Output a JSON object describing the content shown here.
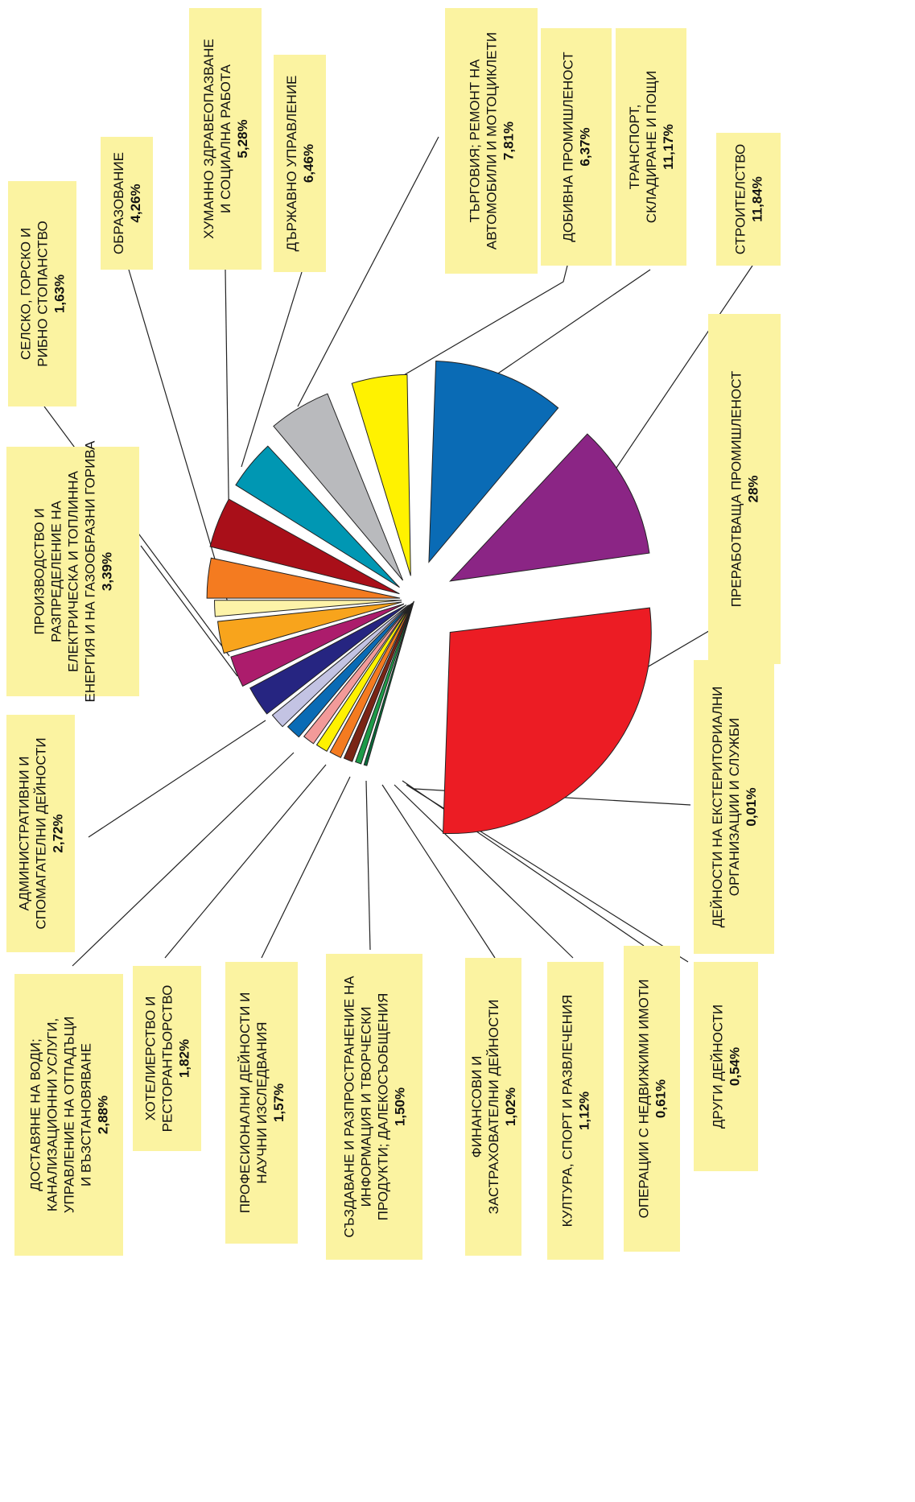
{
  "chart_data": {
    "type": "pie",
    "title": "",
    "slices": [
      {
        "label": "ПРЕРАБОТВАЩА ПРОМИШЛЕНОСТ",
        "value": 28,
        "value_text": "28%",
        "color": "#ec1c24"
      },
      {
        "label": "СТРОИТЕЛСТВО",
        "value": 11.84,
        "value_text": "11,84%",
        "color": "#8b2585"
      },
      {
        "label": "ТРАНСПОРТ, СКЛАДИРАНЕ И ПОЩИ",
        "value": 11.17,
        "value_text": "11,17%",
        "color": "#0a6bb5"
      },
      {
        "label": "ДОБИВНА ПРОМИШЛЕНОСТ",
        "value": 6.37,
        "value_text": "6,37%",
        "color": "#fff200"
      },
      {
        "label": "ТЪРГОВИЯ; РЕМОНТ НА АВТОМОБИЛИ И МОТОЦИКЛЕТИ",
        "value": 7.81,
        "value_text": "7,81%",
        "color": "#b9babd"
      },
      {
        "label": "ДЪРЖАВНО УПРАВЛЕНИЕ",
        "value": 6.46,
        "value_text": "6,46%",
        "color": "#0097b3"
      },
      {
        "label": "ХУМАННО ЗДРАВЕОПАЗВАНЕ И СОЦИАЛНА РАБОТА",
        "value": 5.28,
        "value_text": "5,28%",
        "color": "#a90f19"
      },
      {
        "label": "ОБРАЗОВАНИЕ",
        "value": 4.26,
        "value_text": "4,26%",
        "color": "#f47b20"
      },
      {
        "label": "СЕЛСКО, ГОРСКО И РИБНО СТОПАНСТВО",
        "value": 1.63,
        "value_text": "1,63%",
        "color": "#fdf3a8"
      },
      {
        "label": "ПРОИЗВОДСТВО И РАЗПРЕДЕЛЕНИЕ НА ЕЛЕКТРИЧЕСКА И ТОПЛИННА ЕНЕРГИЯ И НА ГАЗООБРАЗНИ ГОРИВА",
        "value": 3.39,
        "value_text": "3,39%",
        "color": "#f8a41c"
      },
      {
        "label": "АДМИНИСТРАТИВНИ И СПОМАГАТЕЛНИ ДЕЙНОСТИ",
        "value": 2.72,
        "value_text": "2,72%",
        "color": "#ac1c6c"
      },
      {
        "label": "ДОСТАВЯНЕ НА ВОДИ; КАНАЛИЗАЦИОННИ УСЛУГИ, УПРАВЛЕНИЕ НА ОТПАДЪЦИ И ВЪЗСТАНОВЯВАНЕ",
        "value": 2.88,
        "value_text": "2,88%",
        "color": "#262581"
      },
      {
        "label": "ХОТЕЛИЕРСТВО И РЕСТОРАНТЬОРСТВО",
        "value": 1.82,
        "value_text": "1,82%",
        "color": "#c3c3e3"
      },
      {
        "label": "ПРОФЕСИОНАЛНИ ДЕЙНОСТИ И НАУЧНИ ИЗСЛЕДВАНИЯ",
        "value": 1.57,
        "value_text": "1,57%",
        "color": "#0a6bb5"
      },
      {
        "label": "СЪЗДАВАНЕ И РАЗПРОСТРАНЕНИЕ НА ИНФОРМАЦИЯ И ТВОРЧЕСКИ ПРОДУКТИ; ДАЛЕКОСЪОБЩЕНИЯ",
        "value": 1.5,
        "value_text": "1,50%",
        "color": "#f29a99"
      },
      {
        "label": "ФИНАНСОВИ И ЗАСТРАХОВАТЕЛНИ ДЕЙНОСТИ",
        "value": 1.02,
        "value_text": "1,02%",
        "color": "#fff200"
      },
      {
        "label": "КУЛТУРА, СПОРТ И РАЗВЛЕЧЕНИЯ",
        "value": 1.12,
        "value_text": "1,12%",
        "color": "#f47b20"
      },
      {
        "label": "ОПЕРАЦИИ С НЕДВИЖИМИ ИМОТИ",
        "value": 0.61,
        "value_text": "0,61%",
        "color": "#7a2415"
      },
      {
        "label": "ДРУГИ ДЕЙНОСТИ",
        "value": 0.54,
        "value_text": "0,54%",
        "color": "#1c9b48"
      },
      {
        "label": "ДЕЙНОСТИ НА ЕКСТЕРИТОРИАЛНИ ОРГАНИЗАЦИИ И СЛУЖБИ",
        "value": 0.01,
        "value_text": "0,01%",
        "color": "#0a6b3a"
      }
    ],
    "label_box_color": "#fbf3a1",
    "exploded": true,
    "legend": "none"
  }
}
